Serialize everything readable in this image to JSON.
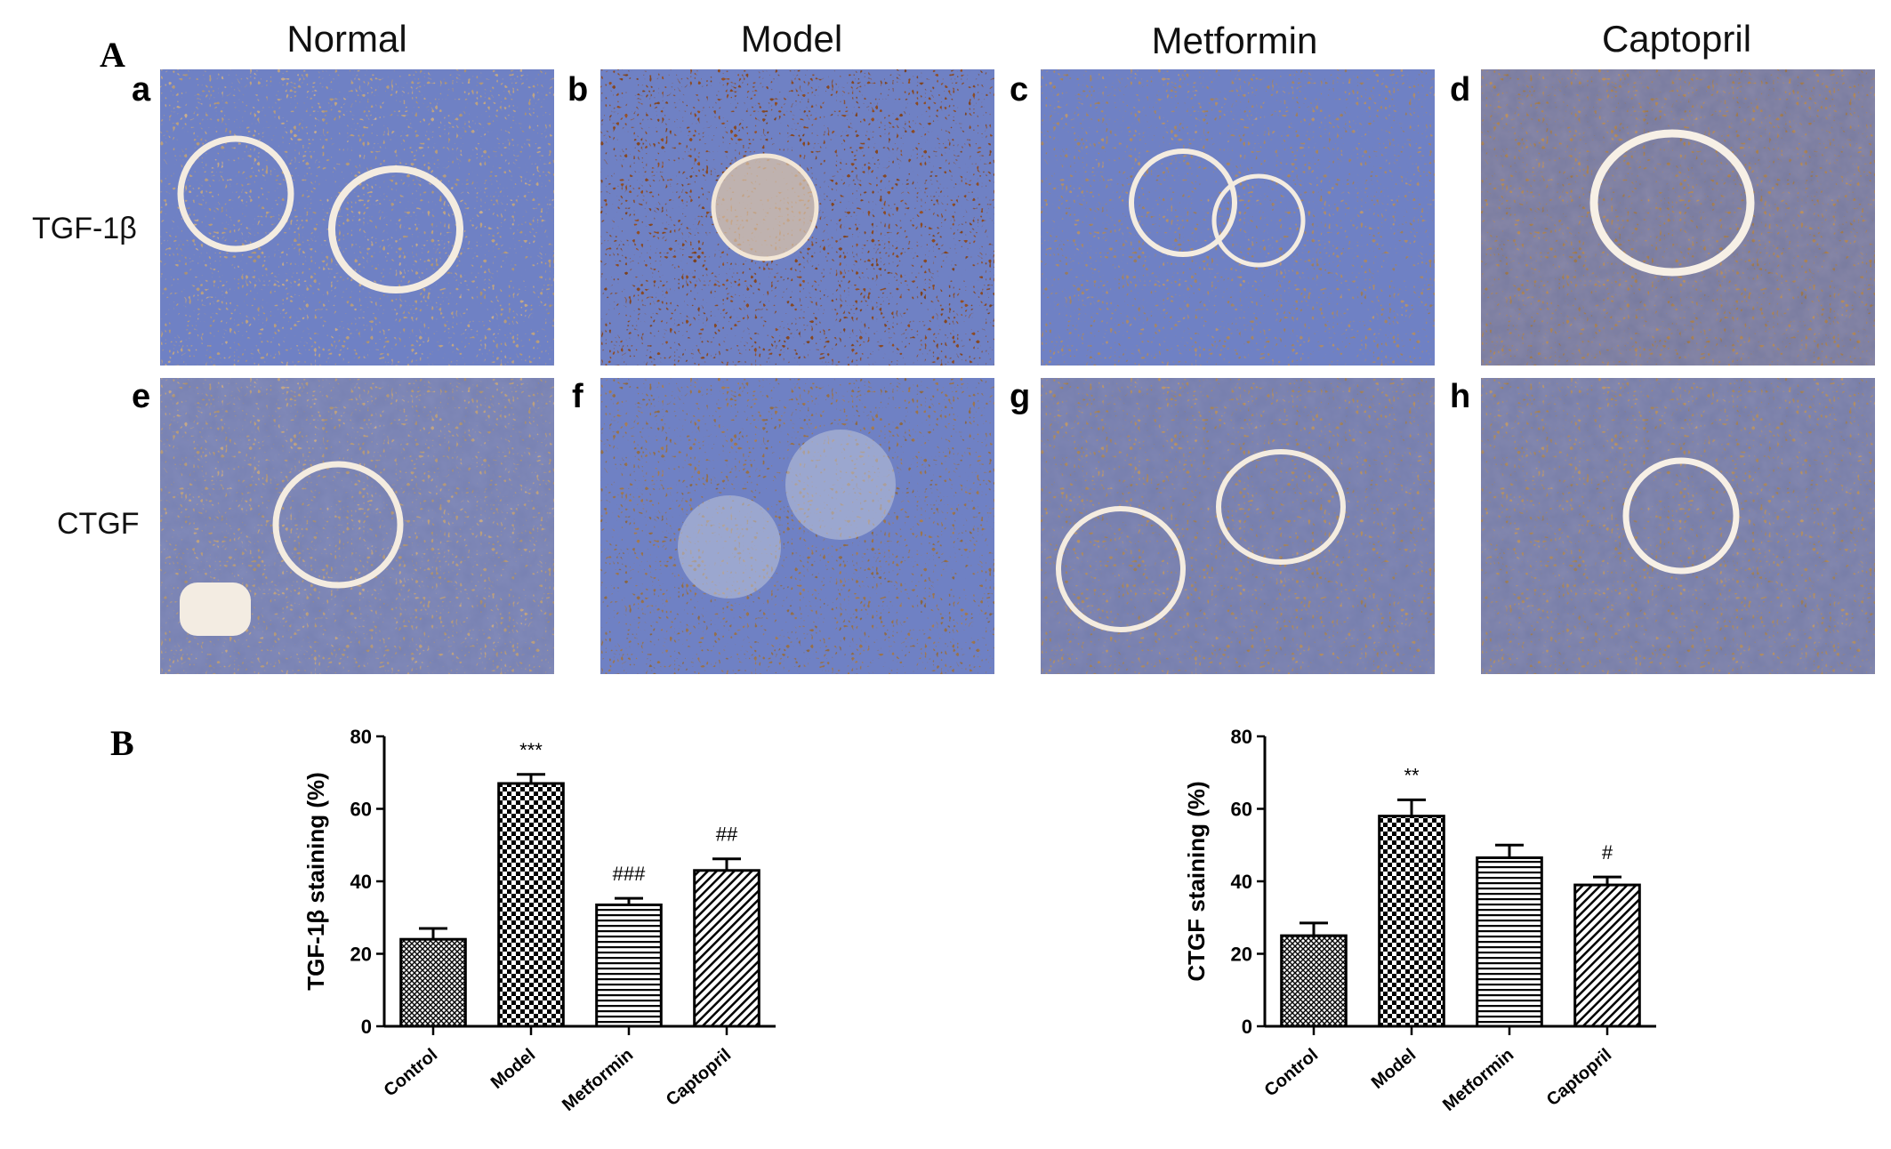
{
  "panel_A": {
    "letter": "A",
    "columns": [
      "Normal",
      "Model",
      "Metformin",
      "Captopril"
    ],
    "rows": [
      "TGF-1β",
      "CTGF"
    ],
    "image_letters": [
      "a",
      "b",
      "c",
      "d",
      "e",
      "f",
      "g",
      "h"
    ]
  },
  "panel_B": {
    "letter": "B"
  },
  "chart_data": [
    {
      "type": "bar",
      "categories": [
        "Control",
        "Model",
        "Metformin",
        "Captopril"
      ],
      "values": [
        24,
        67,
        33.5,
        43
      ],
      "errors": [
        3,
        2.5,
        1.8,
        3.2
      ],
      "annotations": [
        "",
        "***",
        "###",
        "##"
      ],
      "patterns": [
        "grid",
        "checker",
        "horizontal",
        "diagonal"
      ],
      "title": "",
      "xlabel": "",
      "ylabel": "TGF-1β staining (%)",
      "ylim": [
        0,
        80
      ],
      "yticks": [
        0,
        20,
        40,
        60,
        80
      ]
    },
    {
      "type": "bar",
      "categories": [
        "Control",
        "Model",
        "Metformin",
        "Captopril"
      ],
      "values": [
        25,
        58,
        46.5,
        39
      ],
      "errors": [
        3.5,
        4.5,
        3.5,
        2.2
      ],
      "annotations": [
        "",
        "**",
        "",
        "#"
      ],
      "patterns": [
        "grid",
        "checker",
        "horizontal",
        "diagonal"
      ],
      "title": "",
      "xlabel": "",
      "ylabel": "CTGF staining (%)",
      "ylim": [
        0,
        80
      ],
      "yticks": [
        0,
        20,
        40,
        60,
        80
      ]
    }
  ]
}
